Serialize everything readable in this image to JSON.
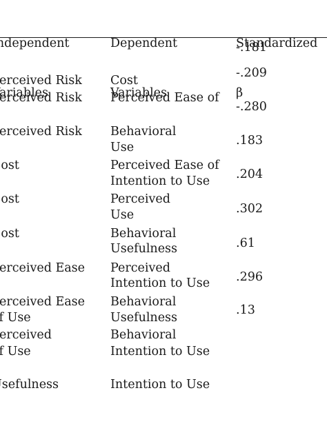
{
  "table": {
    "headers": {
      "independent": [
        "Independent",
        "Variables"
      ],
      "dependent": [
        "Dependent",
        "Variables"
      ],
      "beta": [
        "Standardized",
        "β"
      ]
    },
    "rows": [
      {
        "iv": [
          "Perceived Risk"
        ],
        "dv": [
          "Cost"
        ],
        "beta": "-.181"
      },
      {
        "iv": [
          "Perceived Risk"
        ],
        "dv": [
          "Perceived Ease of",
          "Use"
        ],
        "beta": "-.209"
      },
      {
        "iv": [
          "Perceived Risk"
        ],
        "dv": [
          "Behavioral",
          "Intention to Use"
        ],
        "beta": "-.280"
      },
      {
        "iv": [
          "Cost"
        ],
        "dv": [
          "Perceived Ease of",
          "Use"
        ],
        "beta": ".183"
      },
      {
        "iv": [
          "Cost"
        ],
        "dv": [
          "Perceived",
          "Usefulness"
        ],
        "beta": ".204"
      },
      {
        "iv": [
          "Cost"
        ],
        "dv": [
          "Behavioral",
          "Intention to Use"
        ],
        "beta": ".302"
      },
      {
        "iv": [
          "Perceived Ease",
          "of Use"
        ],
        "dv": [
          "Perceived",
          "Usefulness"
        ],
        "beta": ".61"
      },
      {
        "iv": [
          "Perceived Ease",
          "of Use"
        ],
        "dv": [
          "Behavioral",
          "Intention to Use"
        ],
        "beta": ".296"
      },
      {
        "iv": [
          "Perceived",
          "Usefulness"
        ],
        "dv": [
          "Behavioral",
          "Intention to Use"
        ],
        "beta": ".13"
      }
    ]
  }
}
